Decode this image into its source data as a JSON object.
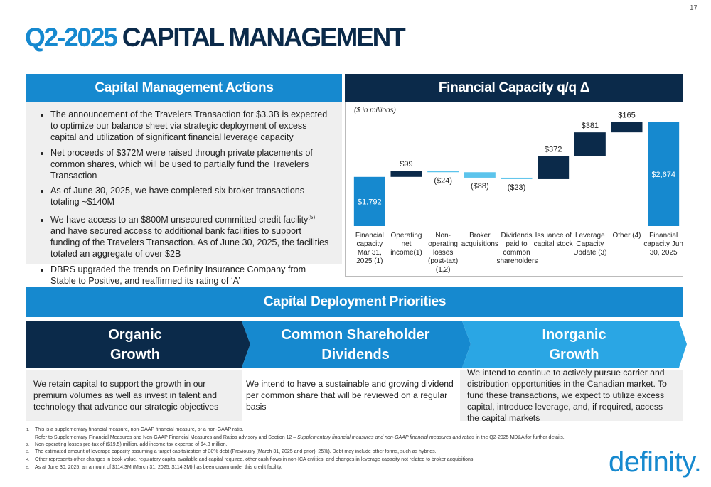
{
  "page_number": "17",
  "title": {
    "prefix": "Q2-2025",
    "main": "CAPITAL MANAGEMENT"
  },
  "actions": {
    "heading": "Capital Management Actions",
    "bullets": [
      "The announcement of the Travelers Transaction for $3.3B is expected to optimize our balance sheet via strategic deployment of excess capital and utilization of significant financial leverage capacity",
      "Net proceeds of $372M were raised through private placements of common shares, which will be used to partially fund the Travelers Transaction",
      "As of June 30, 2025, we have completed six broker transactions totaling ~$140M",
      {
        "before": "We have access to an $800M unsecured committed credit facility",
        "sup": "(5)",
        "after": " and have secured access to additional bank facilities to support funding of the Travelers Transaction. As of June 30, 2025, the facilities totaled an aggregate of over $2B"
      },
      "DBRS upgraded the trends on Definity Insurance Company from Stable to Positive, and reaffirmed its rating of ‘A’"
    ]
  },
  "chart_heading": "Financial Capacity q/q Δ",
  "chart_data": {
    "type": "waterfall",
    "subtitle": "($ in millions)",
    "categories": [
      "Financial capacity Mar 31, 2025 (1)",
      "Operating net income(1)",
      "Non-operating losses (post-tax)(1,2)",
      "Broker acquisitions",
      "Dividends paid to common shareholders",
      "Issuance of capital stock",
      "Leverage Capacity Update (3)",
      "Other (4)",
      "Financial capacity Jun 30, 2025"
    ],
    "values": [
      1792,
      99,
      -24,
      -88,
      -23,
      372,
      381,
      165,
      2674
    ],
    "value_labels": [
      "$1,792",
      "$99",
      "($24)",
      "($88)",
      "($23)",
      "$372",
      "$381",
      "$165",
      "$2,674"
    ],
    "colors": {
      "total": "#1689cf",
      "increase": "#0b2a4a",
      "decrease": "#5cc4ec"
    },
    "ylim": [
      1000,
      2900
    ]
  },
  "priorities": {
    "heading": "Capital Deployment Priorities",
    "columns": [
      {
        "title_lines": [
          "Organic",
          "Growth"
        ],
        "text": "We retain capital to support the growth in our premium volumes as well as invest in talent and technology that advance our strategic objectives"
      },
      {
        "title_lines": [
          "Common Shareholder",
          "Dividends"
        ],
        "text": "We intend to have a sustainable and growing dividend per common share that will be reviewed on a regular basis"
      },
      {
        "title_lines": [
          "Inorganic",
          "Growth"
        ],
        "text": "We intend to continue to actively pursue carrier and distribution opportunities in the Canadian market. To fund these transactions, we expect to utilize excess capital, introduce leverage, and, if required, access the capital markets"
      }
    ]
  },
  "footnotes": [
    {
      "number": "1.",
      "line1": "This is a supplementary financial measure, non-GAAP financial measure, or a non-GAAP ratio.",
      "line2_before": "Refer to Supplementary Financial Measures and Non-GAAP Financial Measures and Ratios advisory and Section 12 – ",
      "line2_italic": "Supplementary financial measures and non-GAAP financial measures and ratios",
      "line2_after": " in the Q2-2025 MD&A for further details."
    },
    {
      "number": "2.",
      "line1": "Non-operating losses pre-tax of ($19.5) million, add income tax expense of $4.3 million."
    },
    {
      "number": "3.",
      "line1": "The estimated amount of leverage capacity assuming a target capitalization of 30% debt (Previously (March 31, 2025 and prior), 25%). Debt may include other forms, such as hybrids."
    },
    {
      "number": "4.",
      "line1": "Other represents other changes in book value, regulatory capital available and capital required, other cash flows in non-ICA entities, and changes in leverage capacity not related to broker acquisitions."
    },
    {
      "number": "5.",
      "line1": "As at June 30, 2025, an amount of $114.3M (March 31, 2025: $114.3M) has been drawn under this credit facility."
    }
  ],
  "logo": "definity."
}
